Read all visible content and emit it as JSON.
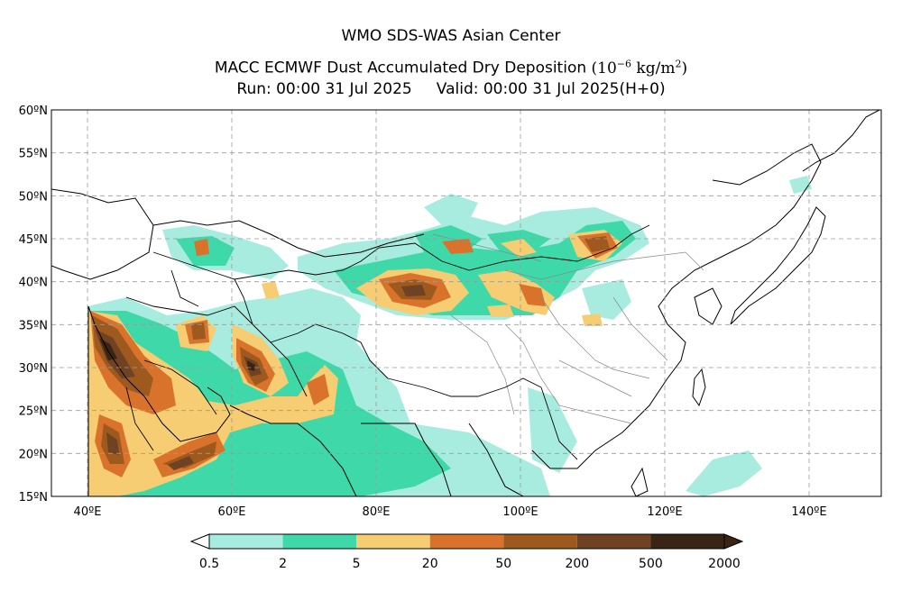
{
  "title": {
    "line1": "WMO SDS-WAS Asian Center",
    "line2_main": "MACC ECMWF Dust Accumulated Dry Deposition",
    "line2_unit": "(10",
    "line2_exp": "−6",
    "line2_unit_mid": " kg/m",
    "line2_unit_exp": "2",
    "line2_unit_end": ")",
    "run": "Run: 00:00 31 Jul 2025",
    "valid": "Valid: 00:00 31 Jul 2025(H+0)"
  },
  "map": {
    "lon_range": [
      35,
      150
    ],
    "lat_range": [
      15,
      60
    ],
    "lon_ticks": [
      {
        "value": 40,
        "label": "40ºE"
      },
      {
        "value": 60,
        "label": "60ºE"
      },
      {
        "value": 80,
        "label": "80ºE"
      },
      {
        "value": 100,
        "label": "100ºE"
      },
      {
        "value": 120,
        "label": "120ºE"
      },
      {
        "value": 140,
        "label": "140ºE"
      }
    ],
    "lat_ticks": [
      {
        "value": 60,
        "label": "60ºN"
      },
      {
        "value": 55,
        "label": "55ºN"
      },
      {
        "value": 50,
        "label": "50ºN"
      },
      {
        "value": 45,
        "label": "45ºN"
      },
      {
        "value": 40,
        "label": "40ºN"
      },
      {
        "value": 35,
        "label": "35ºN"
      },
      {
        "value": 30,
        "label": "30ºN"
      },
      {
        "value": 25,
        "label": "25ºN"
      },
      {
        "value": 20,
        "label": "20ºN"
      },
      {
        "value": 15,
        "label": "15ºN"
      }
    ],
    "grid": true
  },
  "colorbar": {
    "labels": [
      "0.5",
      "2",
      "5",
      "20",
      "50",
      "200",
      "500",
      "2000"
    ],
    "colors": [
      "#a8ece0",
      "#3fd9a9",
      "#f6cd72",
      "#d9732c",
      "#9e5a1e",
      "#6e4222",
      "#3a2414"
    ]
  }
}
